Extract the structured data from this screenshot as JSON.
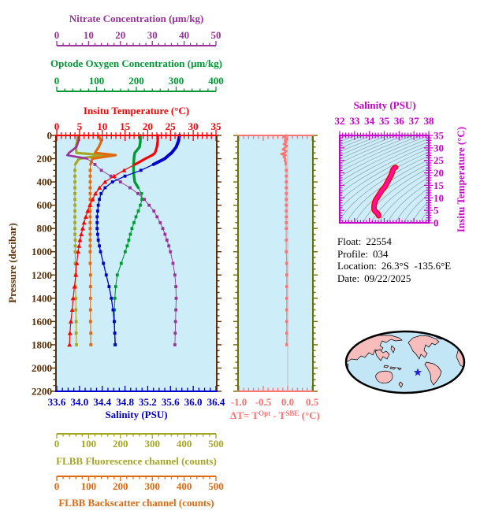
{
  "info": {
    "lines": [
      {
        "label": "Float:",
        "value": "22554"
      },
      {
        "label": "Profile:",
        "value": "034"
      },
      {
        "label": "Location:",
        "value": "26.3°S  -135.6°E"
      },
      {
        "label": "Date:",
        "value": "09/22/2025"
      }
    ]
  },
  "chart_data": {
    "main_profiles": {
      "type": "line",
      "orientation": "vertical-profiles",
      "background": "#CDEDF9",
      "frame_color": "#5C2E04",
      "pressure_levels": [
        0,
        50,
        100,
        150,
        170,
        200,
        250,
        300,
        350,
        400,
        450,
        500,
        550,
        600,
        650,
        700,
        750,
        800,
        850,
        900,
        950,
        1000,
        1100,
        1200,
        1300,
        1400,
        1500,
        1600,
        1700,
        1800
      ],
      "pressure_axis": {
        "label": "Pressure (decibar)",
        "range": [
          0,
          2200
        ],
        "tick_labels": [
          "0",
          "200",
          "400",
          "600",
          "800",
          "1000",
          "1200",
          "1400",
          "1600",
          "1800",
          "2000",
          "2200"
        ],
        "major_step": 200,
        "minor_step": 50,
        "color": "#5C2E04"
      },
      "series": [
        {
          "key": "nitrate",
          "title": "Nitrate Concentration (μm/kg)",
          "color": "#993399",
          "range": [
            0,
            50
          ],
          "tick_labels": [
            "0",
            "10",
            "20",
            "30",
            "40",
            "50"
          ],
          "major_step": 10,
          "minor_step": 2,
          "values": [
            7,
            6.8,
            6.2,
            3.8,
            3.3,
            9.5,
            12,
            14,
            17,
            20,
            23,
            25.5,
            27.5,
            29,
            30.5,
            31.5,
            32.5,
            33.3,
            34,
            34.6,
            35.2,
            35.7,
            36.5,
            37.1,
            37.4,
            37.5,
            37.4,
            37.3,
            37.2,
            37.1
          ]
        },
        {
          "key": "oxygen",
          "title": "Optode Oxygen Concentration (μm/kg)",
          "color": "#009933",
          "range": [
            0,
            400
          ],
          "tick_labels": [
            "0",
            "100",
            "200",
            "300",
            "400"
          ],
          "major_step": 100,
          "minor_step": 20,
          "values": [
            210,
            210,
            208,
            196,
            195,
            194,
            193,
            193,
            194,
            196,
            205,
            213,
            214,
            210,
            205,
            199,
            194,
            189,
            185,
            181,
            177,
            172,
            162,
            152,
            148,
            146,
            145,
            145,
            146,
            146
          ]
        },
        {
          "key": "temperature",
          "title": "Insitu Temperature (°C)",
          "color": "#FF0000",
          "range": [
            0,
            35
          ],
          "tick_labels": [
            "0",
            "5",
            "10",
            "15",
            "20",
            "25",
            "30",
            "35"
          ],
          "major_step": 5,
          "minor_step": 1,
          "values": [
            22.2,
            22.2,
            22.0,
            21.6,
            21.0,
            19.5,
            17.2,
            14.8,
            12.6,
            10.6,
            9.4,
            8.5,
            7.9,
            7.3,
            6.8,
            6.4,
            6.0,
            5.7,
            5.4,
            5.1,
            4.9,
            4.7,
            4.4,
            4.2,
            3.9,
            3.6,
            3.4,
            3.1,
            2.9,
            2.8
          ]
        },
        {
          "key": "salinity",
          "title": "Salinity (PSU)",
          "color": "#0000CC",
          "range": [
            33.6,
            36.4
          ],
          "tick_labels": [
            "33.6",
            "34.0",
            "34.4",
            "34.8",
            "35.2",
            "35.6",
            "36.0",
            "36.4"
          ],
          "major_step": 0.4,
          "minor_step": 0.1,
          "values": [
            35.76,
            35.74,
            35.7,
            35.62,
            35.57,
            35.5,
            35.3,
            35.08,
            34.8,
            34.58,
            34.45,
            34.38,
            34.35,
            34.33,
            34.32,
            34.31,
            34.31,
            34.31,
            34.32,
            34.33,
            34.35,
            34.37,
            34.42,
            34.47,
            34.52,
            34.56,
            34.59,
            34.61,
            34.62,
            34.63
          ]
        },
        {
          "key": "fluorescence",
          "title": "FLBB Fluorescence channel (counts)",
          "color": "#A6A626",
          "range": [
            0,
            500
          ],
          "tick_labels": [
            "0",
            "100",
            "200",
            "300",
            "400",
            "500"
          ],
          "major_step": 100,
          "minor_step": 20,
          "values": [
            66,
            64,
            60,
            62,
            150,
            70,
            58,
            57,
            57,
            57,
            57,
            57,
            57,
            57,
            57,
            57,
            57,
            57,
            57,
            58,
            58,
            58,
            58,
            59,
            59,
            60,
            60,
            61,
            61,
            62
          ]
        },
        {
          "key": "backscatter",
          "title": "FLBB Backscatter channel (counts)",
          "color": "#E06A10",
          "range": [
            0,
            500
          ],
          "tick_labels": [
            "0",
            "100",
            "200",
            "300",
            "400",
            "500"
          ],
          "major_step": 100,
          "minor_step": 20,
          "values": [
            131,
            140,
            132,
            120,
            185,
            112,
            106,
            105,
            105,
            105,
            105,
            105,
            105,
            105,
            105,
            105,
            105,
            105,
            105,
            105,
            105,
            105,
            105,
            106,
            106,
            106,
            106,
            106,
            107,
            107
          ]
        }
      ]
    },
    "delta_t": {
      "type": "line",
      "background": "#CDEDF9",
      "color": "#FF7373",
      "side_frame_color": "#6D6D00",
      "zero_line_color": "#BBBBBB",
      "x_axis": {
        "range": [
          -1.0,
          0.5
        ],
        "tick_labels": [
          "-1.0",
          "-0.5",
          "0.0",
          "0.5"
        ],
        "major_step": 0.5,
        "minor_step": 0.1
      },
      "label": {
        "prefix": "ΔT= T",
        "sup1": "Opt",
        "mid": " - T",
        "sup2": "SBE",
        "suffix": " (°C)"
      },
      "points": [
        [
          0,
          -0.03
        ],
        [
          15,
          -0.07
        ],
        [
          30,
          -0.01
        ],
        [
          45,
          -0.06
        ],
        [
          60,
          -0.03
        ],
        [
          75,
          -0.08
        ],
        [
          90,
          -0.02
        ],
        [
          105,
          -0.05
        ],
        [
          120,
          -0.1
        ],
        [
          135,
          -0.03
        ],
        [
          150,
          -0.06
        ],
        [
          160,
          -0.13
        ],
        [
          170,
          -0.04
        ],
        [
          185,
          -0.08
        ],
        [
          200,
          -0.05
        ],
        [
          215,
          -0.06
        ],
        [
          230,
          -0.04
        ],
        [
          250,
          -0.04
        ],
        [
          300,
          -0.03
        ],
        [
          350,
          -0.03
        ],
        [
          400,
          -0.03
        ],
        [
          450,
          -0.03
        ],
        [
          500,
          -0.03
        ],
        [
          550,
          -0.03
        ],
        [
          600,
          -0.03
        ],
        [
          650,
          -0.03
        ],
        [
          700,
          -0.03
        ],
        [
          750,
          -0.03
        ],
        [
          800,
          -0.03
        ],
        [
          900,
          -0.03
        ],
        [
          1000,
          -0.03
        ],
        [
          1100,
          -0.02
        ],
        [
          1200,
          -0.02
        ],
        [
          1300,
          -0.02
        ],
        [
          1400,
          -0.02
        ],
        [
          1500,
          -0.02
        ],
        [
          1600,
          -0.02
        ],
        [
          1700,
          -0.02
        ],
        [
          1800,
          -0.02
        ]
      ]
    },
    "ts_diagram": {
      "type": "line",
      "background": "#CDEDF9",
      "frame_color": "#CC00CC",
      "curve_color": "#FF10A0",
      "curve_edge_color": "#FF0000",
      "isopycnal_color": "#94A8B4",
      "x_axis": {
        "title": "Salinity (PSU)",
        "range": [
          32,
          38
        ],
        "tick_labels": [
          "32",
          "33",
          "34",
          "35",
          "36",
          "37",
          "38"
        ],
        "major_step": 1,
        "minor_step": 0.2
      },
      "y_axis": {
        "title": "Insitu Temperature (°C)",
        "range": [
          0,
          35
        ],
        "tick_labels": [
          "0",
          "5",
          "10",
          "15",
          "20",
          "25",
          "30",
          "35"
        ],
        "major_step": 5,
        "minor_step": 1
      },
      "curve_source": "salinity_vs_temperature"
    },
    "map": {
      "ocean_color": "#C2E6F5",
      "land_color": "#F7BCBC",
      "outline_color": "#000000",
      "star_color": "#2222DD",
      "star_note": "float location"
    }
  }
}
